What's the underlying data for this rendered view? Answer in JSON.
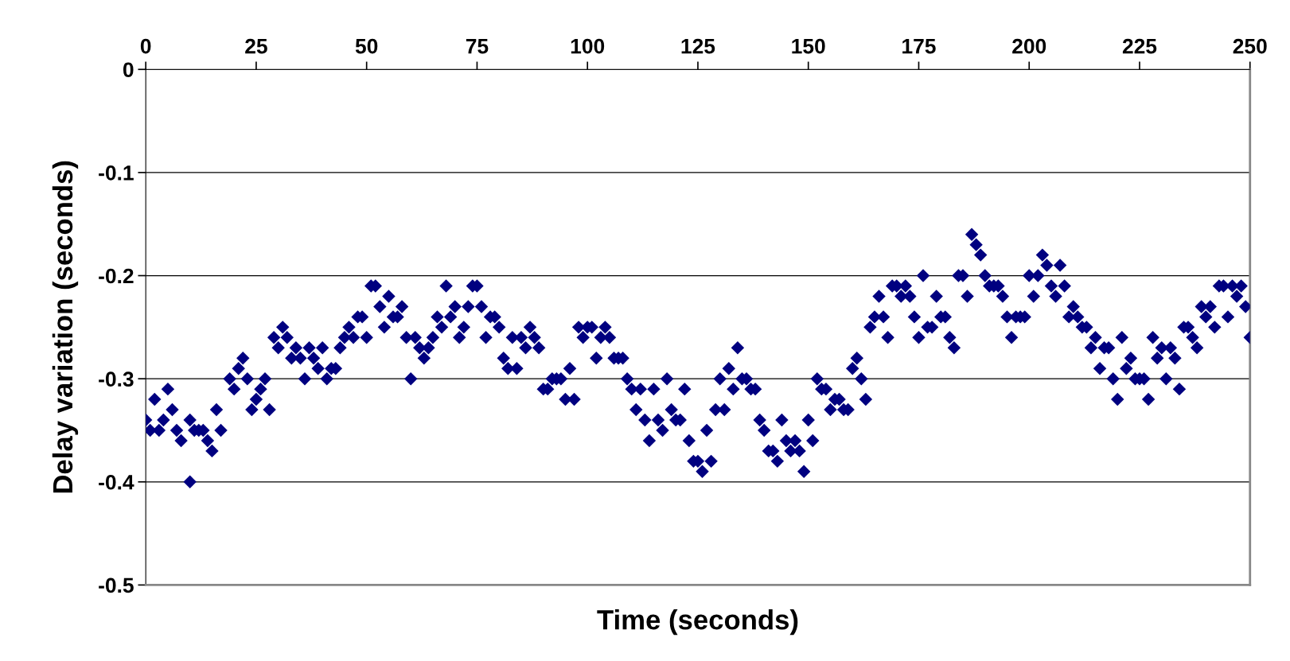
{
  "chart_data": {
    "type": "scatter",
    "xlabel": "Time (seconds)",
    "ylabel": "Delay variation (seconds)",
    "xlim": [
      0,
      250
    ],
    "xticks": [
      0,
      25,
      50,
      75,
      100,
      125,
      150,
      175,
      200,
      225,
      250
    ],
    "ylim": [
      -0.5,
      0
    ],
    "yticks": [
      {
        "value": -0.5,
        "label": "-0.5"
      },
      {
        "value": -0.4,
        "label": "-0.4"
      },
      {
        "value": -0.3,
        "label": "-0.3"
      },
      {
        "value": -0.2,
        "label": "-0.2"
      },
      {
        "value": -0.1,
        "label": "-0.1"
      },
      0
    ],
    "grid": "y",
    "marker": "diamond",
    "series": [
      {
        "color": "#000080",
        "x": [
          0,
          1,
          2,
          3,
          4,
          5,
          6,
          7,
          8,
          10,
          10,
          11,
          12,
          13,
          14,
          15,
          16,
          17,
          19,
          20,
          21,
          22,
          23,
          24,
          25,
          26,
          27,
          28,
          29,
          30,
          31,
          32,
          33,
          34,
          35,
          36,
          37,
          38,
          39,
          40,
          41,
          42,
          43,
          44,
          45,
          46,
          47,
          48,
          49,
          50,
          51,
          52,
          53,
          54,
          55,
          56,
          57,
          58,
          59,
          60,
          61,
          62,
          63,
          64,
          65,
          66,
          67,
          68,
          69,
          70,
          71,
          72,
          73,
          74,
          75,
          76,
          77,
          78,
          79,
          80,
          81,
          82,
          83,
          84,
          85,
          86,
          87,
          88,
          89,
          90,
          91,
          92,
          93,
          94,
          95,
          96,
          97,
          98,
          99,
          100,
          101,
          102,
          103,
          104,
          105,
          106,
          107,
          108,
          109,
          110,
          111,
          112,
          113,
          114,
          115,
          116,
          117,
          118,
          119,
          120,
          121,
          122,
          123,
          124,
          125,
          126,
          127,
          128,
          129,
          130,
          131,
          132,
          133,
          134,
          135,
          136,
          137,
          138,
          139,
          140,
          141,
          142,
          143,
          144,
          145,
          146,
          147,
          148,
          149,
          150,
          151,
          152,
          153,
          154,
          155,
          156,
          157,
          158,
          159,
          160,
          161,
          162,
          163,
          164,
          165,
          166,
          167,
          168,
          169,
          170,
          171,
          172,
          173,
          174,
          175,
          176,
          177,
          178,
          179,
          180,
          181,
          182,
          183,
          184,
          185,
          186,
          187,
          188,
          189,
          190,
          191,
          192,
          193,
          194,
          195,
          196,
          197,
          198,
          199,
          200,
          201,
          202,
          203,
          204,
          205,
          206,
          207,
          208,
          209,
          210,
          211,
          212,
          213,
          214,
          215,
          216,
          217,
          218,
          219,
          220,
          221,
          222,
          223,
          224,
          225,
          226,
          227,
          228,
          229,
          230,
          231,
          232,
          233,
          234,
          235,
          236,
          237,
          238,
          239,
          240,
          241,
          242,
          243,
          244,
          245,
          246,
          247,
          248,
          249,
          250
        ],
        "values": [
          -0.34,
          -0.35,
          -0.32,
          -0.35,
          -0.34,
          -0.31,
          -0.33,
          -0.35,
          -0.36,
          -0.34,
          -0.4,
          -0.35,
          -0.35,
          -0.35,
          -0.36,
          -0.37,
          -0.33,
          -0.35,
          -0.3,
          -0.31,
          -0.29,
          -0.28,
          -0.3,
          -0.33,
          -0.32,
          -0.31,
          -0.3,
          -0.33,
          -0.26,
          -0.27,
          -0.25,
          -0.26,
          -0.28,
          -0.27,
          -0.28,
          -0.3,
          -0.27,
          -0.28,
          -0.29,
          -0.27,
          -0.3,
          -0.29,
          -0.29,
          -0.27,
          -0.26,
          -0.25,
          -0.26,
          -0.24,
          -0.24,
          -0.26,
          -0.21,
          -0.21,
          -0.23,
          -0.25,
          -0.22,
          -0.24,
          -0.24,
          -0.23,
          -0.26,
          -0.3,
          -0.26,
          -0.27,
          -0.28,
          -0.27,
          -0.26,
          -0.24,
          -0.25,
          -0.21,
          -0.24,
          -0.23,
          -0.26,
          -0.25,
          -0.23,
          -0.21,
          -0.21,
          -0.23,
          -0.26,
          -0.24,
          -0.24,
          -0.25,
          -0.28,
          -0.29,
          -0.26,
          -0.29,
          -0.26,
          -0.27,
          -0.25,
          -0.26,
          -0.27,
          -0.31,
          -0.31,
          -0.3,
          -0.3,
          -0.3,
          -0.32,
          -0.29,
          -0.32,
          -0.25,
          -0.26,
          -0.25,
          -0.25,
          -0.28,
          -0.26,
          -0.25,
          -0.26,
          -0.28,
          -0.28,
          -0.28,
          -0.3,
          -0.31,
          -0.33,
          -0.31,
          -0.34,
          -0.36,
          -0.31,
          -0.34,
          -0.35,
          -0.3,
          -0.33,
          -0.34,
          -0.34,
          -0.31,
          -0.36,
          -0.38,
          -0.38,
          -0.39,
          -0.35,
          -0.38,
          -0.33,
          -0.3,
          -0.33,
          -0.29,
          -0.31,
          -0.27,
          -0.3,
          -0.3,
          -0.31,
          -0.31,
          -0.34,
          -0.35,
          -0.37,
          -0.37,
          -0.38,
          -0.34,
          -0.36,
          -0.37,
          -0.36,
          -0.37,
          -0.39,
          -0.34,
          -0.36,
          -0.3,
          -0.31,
          -0.31,
          -0.33,
          -0.32,
          -0.32,
          -0.33,
          -0.33,
          -0.29,
          -0.28,
          -0.3,
          -0.32,
          -0.25,
          -0.24,
          -0.22,
          -0.24,
          -0.26,
          -0.21,
          -0.21,
          -0.22,
          -0.21,
          -0.22,
          -0.24,
          -0.26,
          -0.2,
          -0.25,
          -0.25,
          -0.22,
          -0.24,
          -0.24,
          -0.26,
          -0.27,
          -0.2,
          -0.2,
          -0.22,
          -0.16,
          -0.17,
          -0.18,
          -0.2,
          -0.21,
          -0.21,
          -0.21,
          -0.22,
          -0.24,
          -0.26,
          -0.24,
          -0.24,
          -0.24,
          -0.2,
          -0.22,
          -0.2,
          -0.18,
          -0.19,
          -0.21,
          -0.22,
          -0.19,
          -0.21,
          -0.24,
          -0.23,
          -0.24,
          -0.25,
          -0.25,
          -0.27,
          -0.26,
          -0.29,
          -0.27,
          -0.27,
          -0.3,
          -0.32,
          -0.26,
          -0.29,
          -0.28,
          -0.3,
          -0.3,
          -0.3,
          -0.32,
          -0.26,
          -0.28,
          -0.27,
          -0.3,
          -0.27,
          -0.28,
          -0.31,
          -0.25,
          -0.25,
          -0.26,
          -0.27,
          -0.23,
          -0.24,
          -0.23,
          -0.25,
          -0.21,
          -0.21,
          -0.24,
          -0.21,
          -0.22,
          -0.21,
          -0.23,
          -0.26
        ]
      }
    ]
  }
}
